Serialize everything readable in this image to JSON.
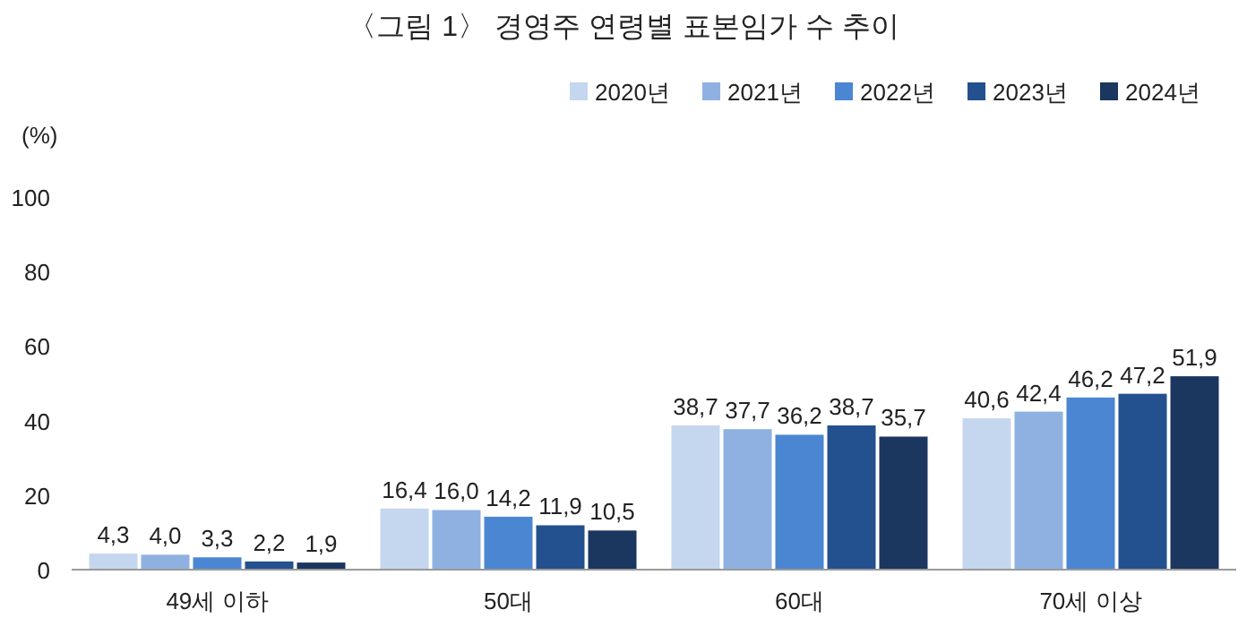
{
  "chart_data": {
    "type": "bar",
    "title": "〈그림 1〉 경영주 연령별 표본임가 수 추이",
    "ylabel": "(%)",
    "categories": [
      "49세 이하",
      "50대",
      "60대",
      "70세 이상"
    ],
    "series": [
      {
        "name": "2020년",
        "color": "#c5d6ef",
        "values": [
          4.3,
          16.4,
          38.7,
          40.6
        ],
        "value_labels": [
          "4,3",
          "16,4",
          "38,7",
          "40,6"
        ]
      },
      {
        "name": "2021년",
        "color": "#8eb1e2",
        "values": [
          4.0,
          16.0,
          37.7,
          42.4
        ],
        "value_labels": [
          "4,0",
          "16,0",
          "37,7",
          "42,4"
        ]
      },
      {
        "name": "2022년",
        "color": "#4a86d2",
        "values": [
          3.3,
          14.2,
          36.2,
          46.2
        ],
        "value_labels": [
          "3,3",
          "14,2",
          "36,2",
          "46,2"
        ]
      },
      {
        "name": "2023년",
        "color": "#23508f",
        "values": [
          2.2,
          11.9,
          38.7,
          47.2
        ],
        "value_labels": [
          "2,2",
          "11,9",
          "38,7",
          "47,2"
        ]
      },
      {
        "name": "2024년",
        "color": "#1b365f",
        "values": [
          1.9,
          10.5,
          35.7,
          51.9
        ],
        "value_labels": [
          "1,9",
          "10,5",
          "35,7",
          "51,9"
        ]
      }
    ],
    "ylim": [
      0,
      100
    ],
    "yticks": [
      0,
      20,
      40,
      60,
      80,
      100
    ],
    "grid": false,
    "legend": "top right"
  }
}
